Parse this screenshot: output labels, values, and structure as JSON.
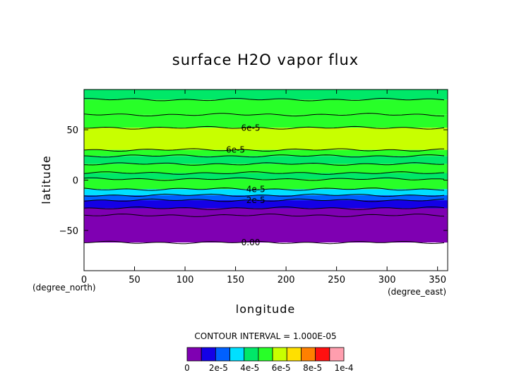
{
  "chart_data": {
    "type": "heatmap",
    "title": "surface H2O vapor flux",
    "xlabel": "longitude",
    "ylabel": "latitude",
    "x_unit": "(degree_east)",
    "y_unit": "(degree_north)",
    "xlim": [
      0,
      360
    ],
    "ylim": [
      -90,
      90
    ],
    "x_ticks": [
      "0",
      "50",
      "100",
      "150",
      "200",
      "250",
      "300",
      "350"
    ],
    "y_ticks": [
      "50",
      "0",
      "−50"
    ],
    "contour_interval": "CONTOUR INTERVAL = 1.000E-05",
    "contour_labels": [
      "6e-5",
      "6e-5",
      "4e-5",
      "2e-5",
      "0.00"
    ],
    "bands": [
      {
        "lat_min": 80,
        "lat_max": 90,
        "value": 4.5e-05
      },
      {
        "lat_min": 65,
        "lat_max": 80,
        "value": 5.5e-05
      },
      {
        "lat_min": 52,
        "lat_max": 65,
        "value": 5.5e-05
      },
      {
        "lat_min": 30,
        "lat_max": 52,
        "value": 6.5e-05
      },
      {
        "lat_min": 24,
        "lat_max": 30,
        "value": 5.5e-05
      },
      {
        "lat_min": 16,
        "lat_max": 24,
        "value": 4.5e-05
      },
      {
        "lat_min": 7,
        "lat_max": 16,
        "value": 5.5e-05
      },
      {
        "lat_min": 1,
        "lat_max": 7,
        "value": 4.5e-05
      },
      {
        "lat_min": -9,
        "lat_max": 1,
        "value": 5.5e-05
      },
      {
        "lat_min": -15,
        "lat_max": -9,
        "value": 3.5e-05
      },
      {
        "lat_min": -20,
        "lat_max": -15,
        "value": 2.5e-05
      },
      {
        "lat_min": -28,
        "lat_max": -20,
        "value": 1.5e-05
      },
      {
        "lat_min": -35,
        "lat_max": -28,
        "value": 5e-06
      },
      {
        "lat_min": -62,
        "lat_max": -35,
        "value": 5e-06
      }
    ],
    "legend_levels": [
      0,
      1e-05,
      2e-05,
      3e-05,
      4e-05,
      5e-05,
      6e-05,
      7e-05,
      8e-05,
      9e-05,
      0.0001
    ],
    "legend_tick_labels": [
      "0",
      "2e-5",
      "4e-5",
      "6e-5",
      "8e-5",
      "1e-4"
    ],
    "legend_colors": [
      "#7f00b2",
      "#1400e6",
      "#0060ff",
      "#00e0ff",
      "#00e868",
      "#28ff28",
      "#c8ff00",
      "#ffe000",
      "#ff8000",
      "#ff1010",
      "#ff9eae"
    ]
  }
}
